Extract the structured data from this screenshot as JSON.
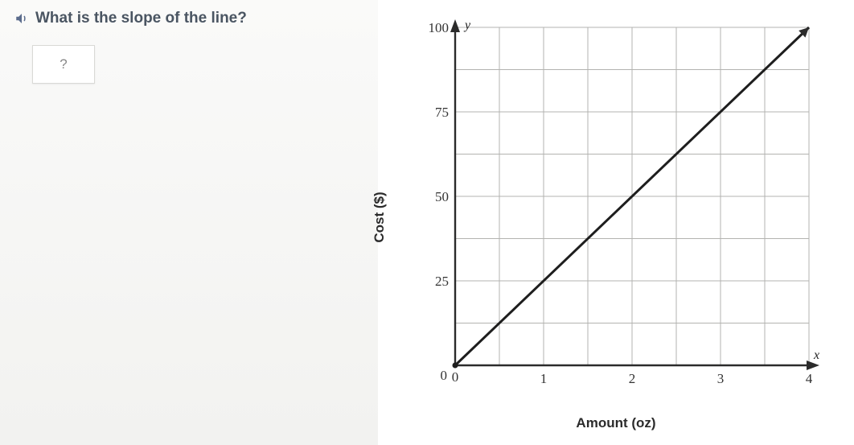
{
  "question": {
    "prompt": "What is the slope of the line?",
    "placeholder": "?"
  },
  "chart": {
    "type": "line",
    "y_axis_symbol": "y",
    "x_axis_symbol": "x",
    "ylabel": "Cost ($)",
    "xlabel": "Amount (oz)",
    "xlim": [
      0,
      4
    ],
    "ylim": [
      0,
      100
    ],
    "xtick_step": 1,
    "ytick_step": 25,
    "xticks": [
      0,
      1,
      2,
      3,
      4
    ],
    "yticks": [
      25,
      50,
      75,
      100
    ],
    "grid_minor_x": 0.5,
    "grid_minor_y": 12.5,
    "data_points": [
      [
        0,
        0
      ],
      [
        4,
        100
      ]
    ],
    "line_color": "#1e1e1e",
    "grid_color": "#b3b3b0",
    "axis_color": "#2b2b2b",
    "background_color": "#ffffff",
    "line_width": 3,
    "tick_fontsize": 17,
    "label_fontsize": 17
  }
}
